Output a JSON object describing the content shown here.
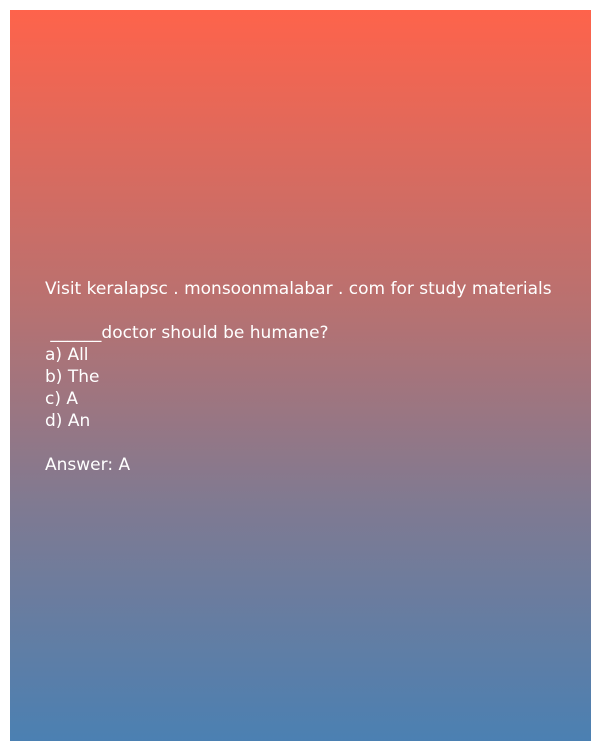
{
  "promo": "Visit keralapsc . monsoonmalabar . com for study materials",
  "question": {
    "text": " ______doctor should be humane?",
    "options": [
      "a) All",
      "b) The",
      "c) A",
      "d) An"
    ]
  },
  "answer": "Answer: A"
}
